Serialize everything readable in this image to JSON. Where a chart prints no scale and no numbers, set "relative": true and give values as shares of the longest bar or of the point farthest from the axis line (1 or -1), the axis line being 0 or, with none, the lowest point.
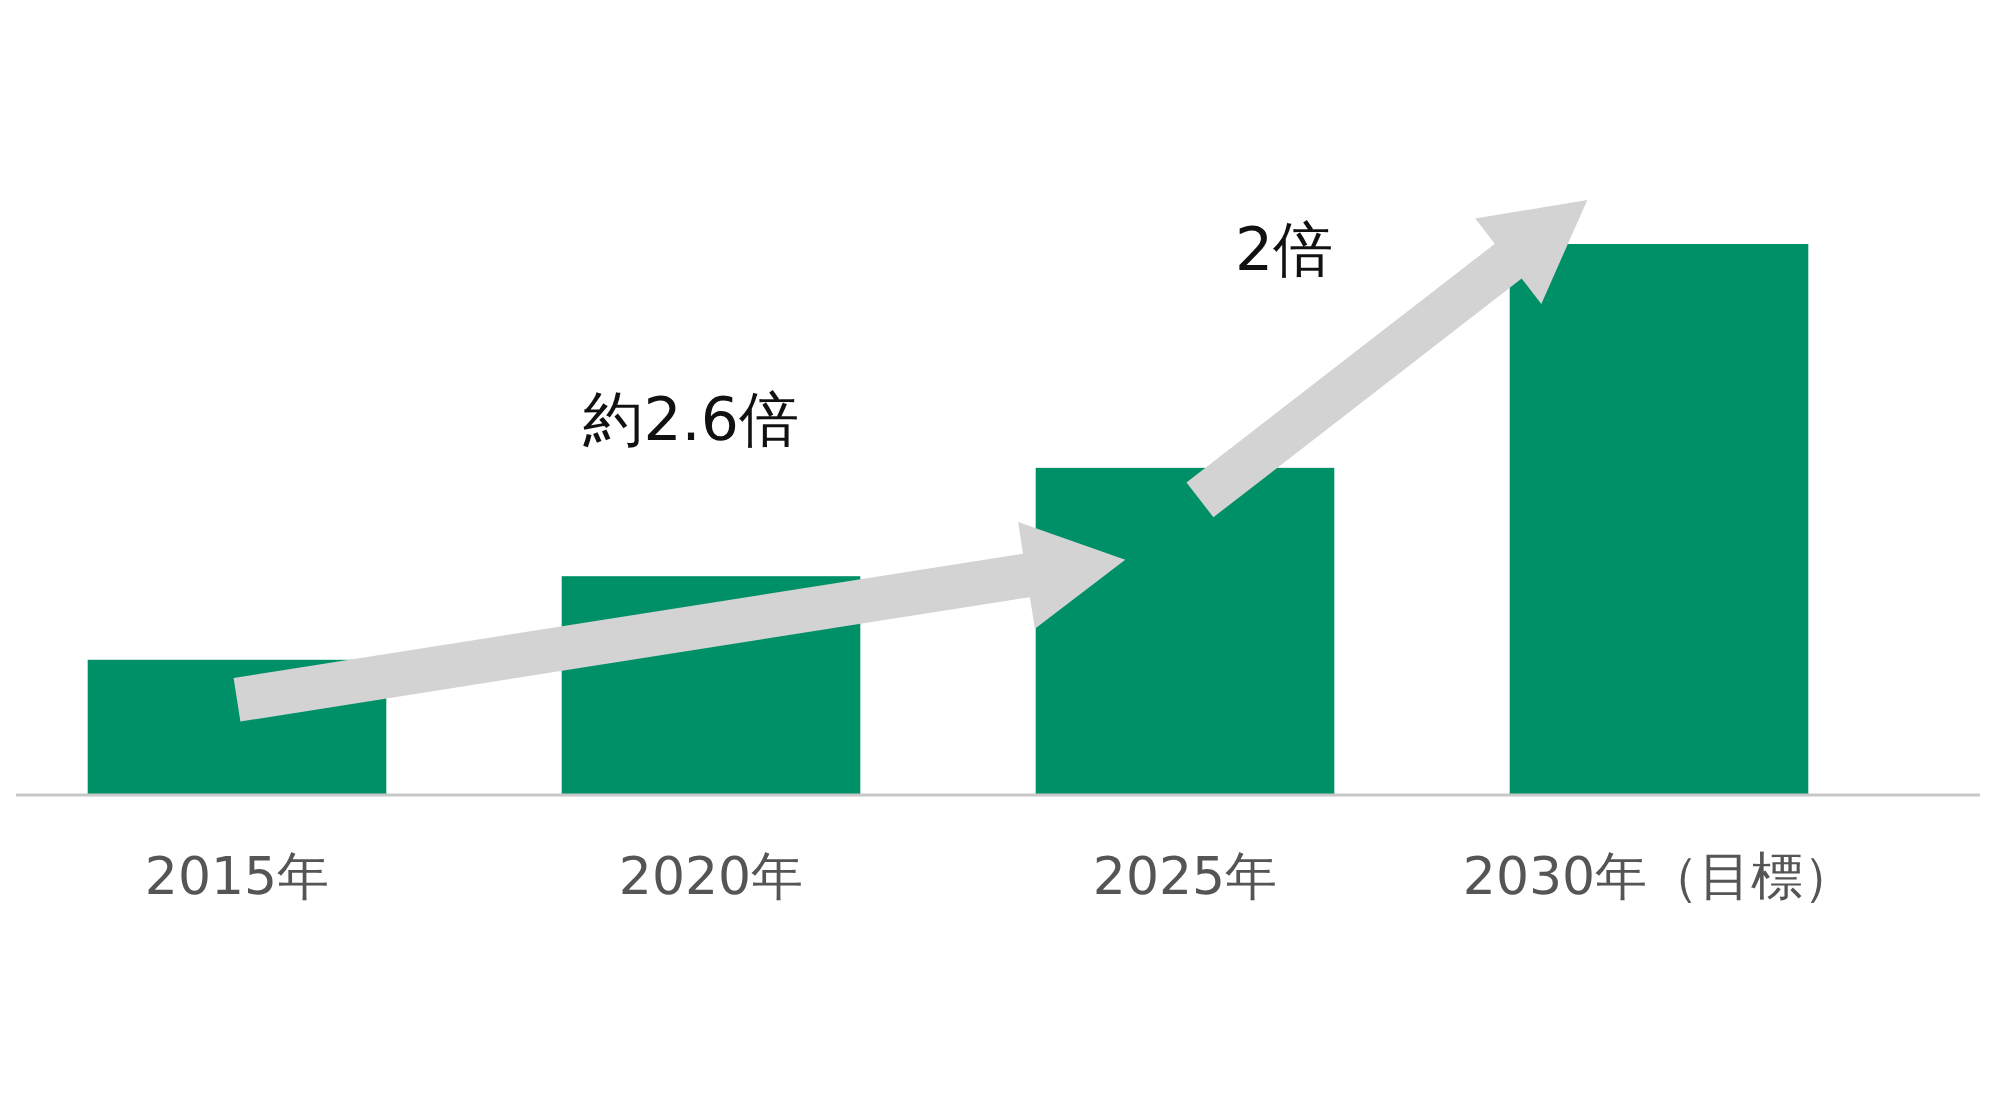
{
  "chart_data": {
    "type": "bar",
    "relative": true,
    "categories": [
      "2015年",
      "2020年",
      "2025年",
      "2030年（目標）"
    ],
    "values": [
      0.244,
      0.396,
      0.593,
      1
    ],
    "color": "#009068",
    "annotations": [
      "約2.6倍",
      "2倍"
    ]
  }
}
